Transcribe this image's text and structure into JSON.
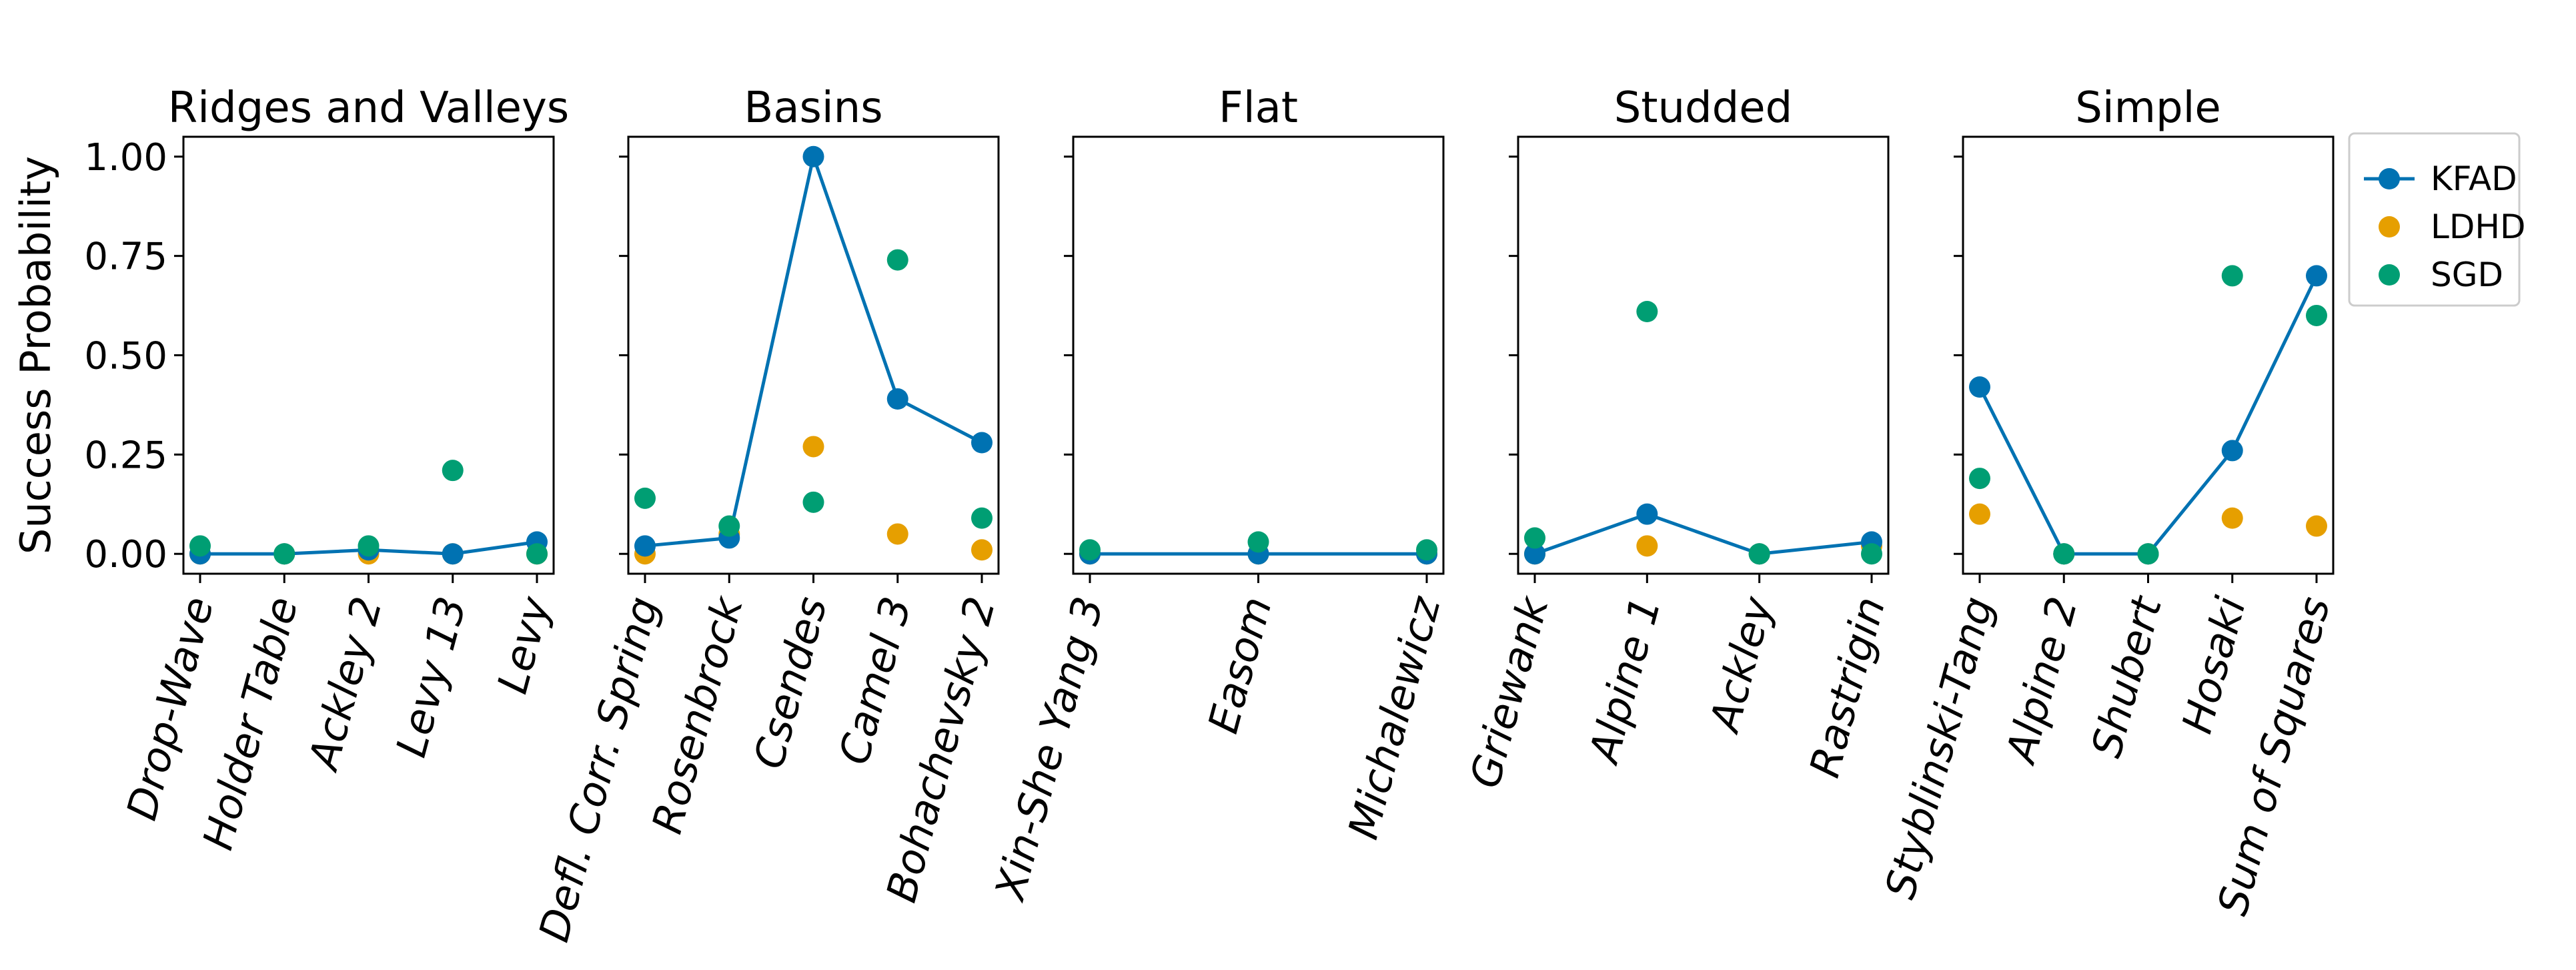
{
  "chart_data": {
    "type": "line",
    "ylabel": "Success Probability",
    "yticks": [
      "0.00",
      "0.25",
      "0.50",
      "0.75",
      "1.00"
    ],
    "ylim": [
      -0.05,
      1.05
    ],
    "grid": false,
    "legend_placement": "right, outside top",
    "legend": [
      {
        "name": "KFAD",
        "color": "#0072b2",
        "style": "line+marker"
      },
      {
        "name": "LDHD",
        "color": "#e69f00",
        "style": "marker"
      },
      {
        "name": "SGD",
        "color": "#009e73",
        "style": "marker"
      }
    ],
    "panels": [
      {
        "title": "Ridges and Valleys",
        "categories": [
          "Drop-Wave",
          "Holder Table",
          "Ackley 2",
          "Levy 13",
          "Levy"
        ],
        "series": [
          {
            "name": "KFAD",
            "values": [
              0.0,
              0.0,
              0.01,
              0.0,
              0.03
            ]
          },
          {
            "name": "LDHD",
            "values": [
              0.0,
              0.0,
              0.0,
              0.0,
              0.0
            ]
          },
          {
            "name": "SGD",
            "values": [
              0.02,
              0.0,
              0.02,
              0.21,
              0.0
            ]
          }
        ]
      },
      {
        "title": "Basins",
        "categories": [
          "Defl. Corr. Spring",
          "Rosenbrock",
          "Csendes",
          "Camel 3",
          "Bohachevsky 2"
        ],
        "series": [
          {
            "name": "KFAD",
            "values": [
              0.02,
              0.04,
              1.0,
              0.39,
              0.28
            ]
          },
          {
            "name": "LDHD",
            "values": [
              0.0,
              0.05,
              0.27,
              0.05,
              0.01
            ]
          },
          {
            "name": "SGD",
            "values": [
              0.14,
              0.07,
              0.13,
              0.74,
              0.09
            ]
          }
        ]
      },
      {
        "title": "Flat",
        "categories": [
          "Xin-She Yang 3",
          "Easom",
          "Michalewicz"
        ],
        "series": [
          {
            "name": "KFAD",
            "values": [
              0.0,
              0.0,
              0.0
            ]
          },
          {
            "name": "LDHD",
            "values": [
              0.0,
              0.0,
              0.0
            ]
          },
          {
            "name": "SGD",
            "values": [
              0.01,
              0.03,
              0.01
            ]
          }
        ]
      },
      {
        "title": "Studded",
        "categories": [
          "Griewank",
          "Alpine 1",
          "Ackley",
          "Rastrigin"
        ],
        "series": [
          {
            "name": "KFAD",
            "values": [
              0.0,
              0.1,
              0.0,
              0.03
            ]
          },
          {
            "name": "LDHD",
            "values": [
              0.0,
              0.02,
              0.0,
              0.02
            ]
          },
          {
            "name": "SGD",
            "values": [
              0.04,
              0.61,
              0.0,
              0.0
            ]
          }
        ]
      },
      {
        "title": "Simple",
        "categories": [
          "Styblinski-Tang",
          "Alpine 2",
          "Shubert",
          "Hosaki",
          "Sum of Squares"
        ],
        "series": [
          {
            "name": "KFAD",
            "values": [
              0.42,
              0.0,
              0.0,
              0.26,
              0.7
            ]
          },
          {
            "name": "LDHD",
            "values": [
              0.1,
              0.0,
              0.0,
              0.09,
              0.07
            ]
          },
          {
            "name": "SGD",
            "values": [
              0.19,
              0.0,
              0.0,
              0.7,
              0.6
            ]
          }
        ]
      }
    ]
  }
}
